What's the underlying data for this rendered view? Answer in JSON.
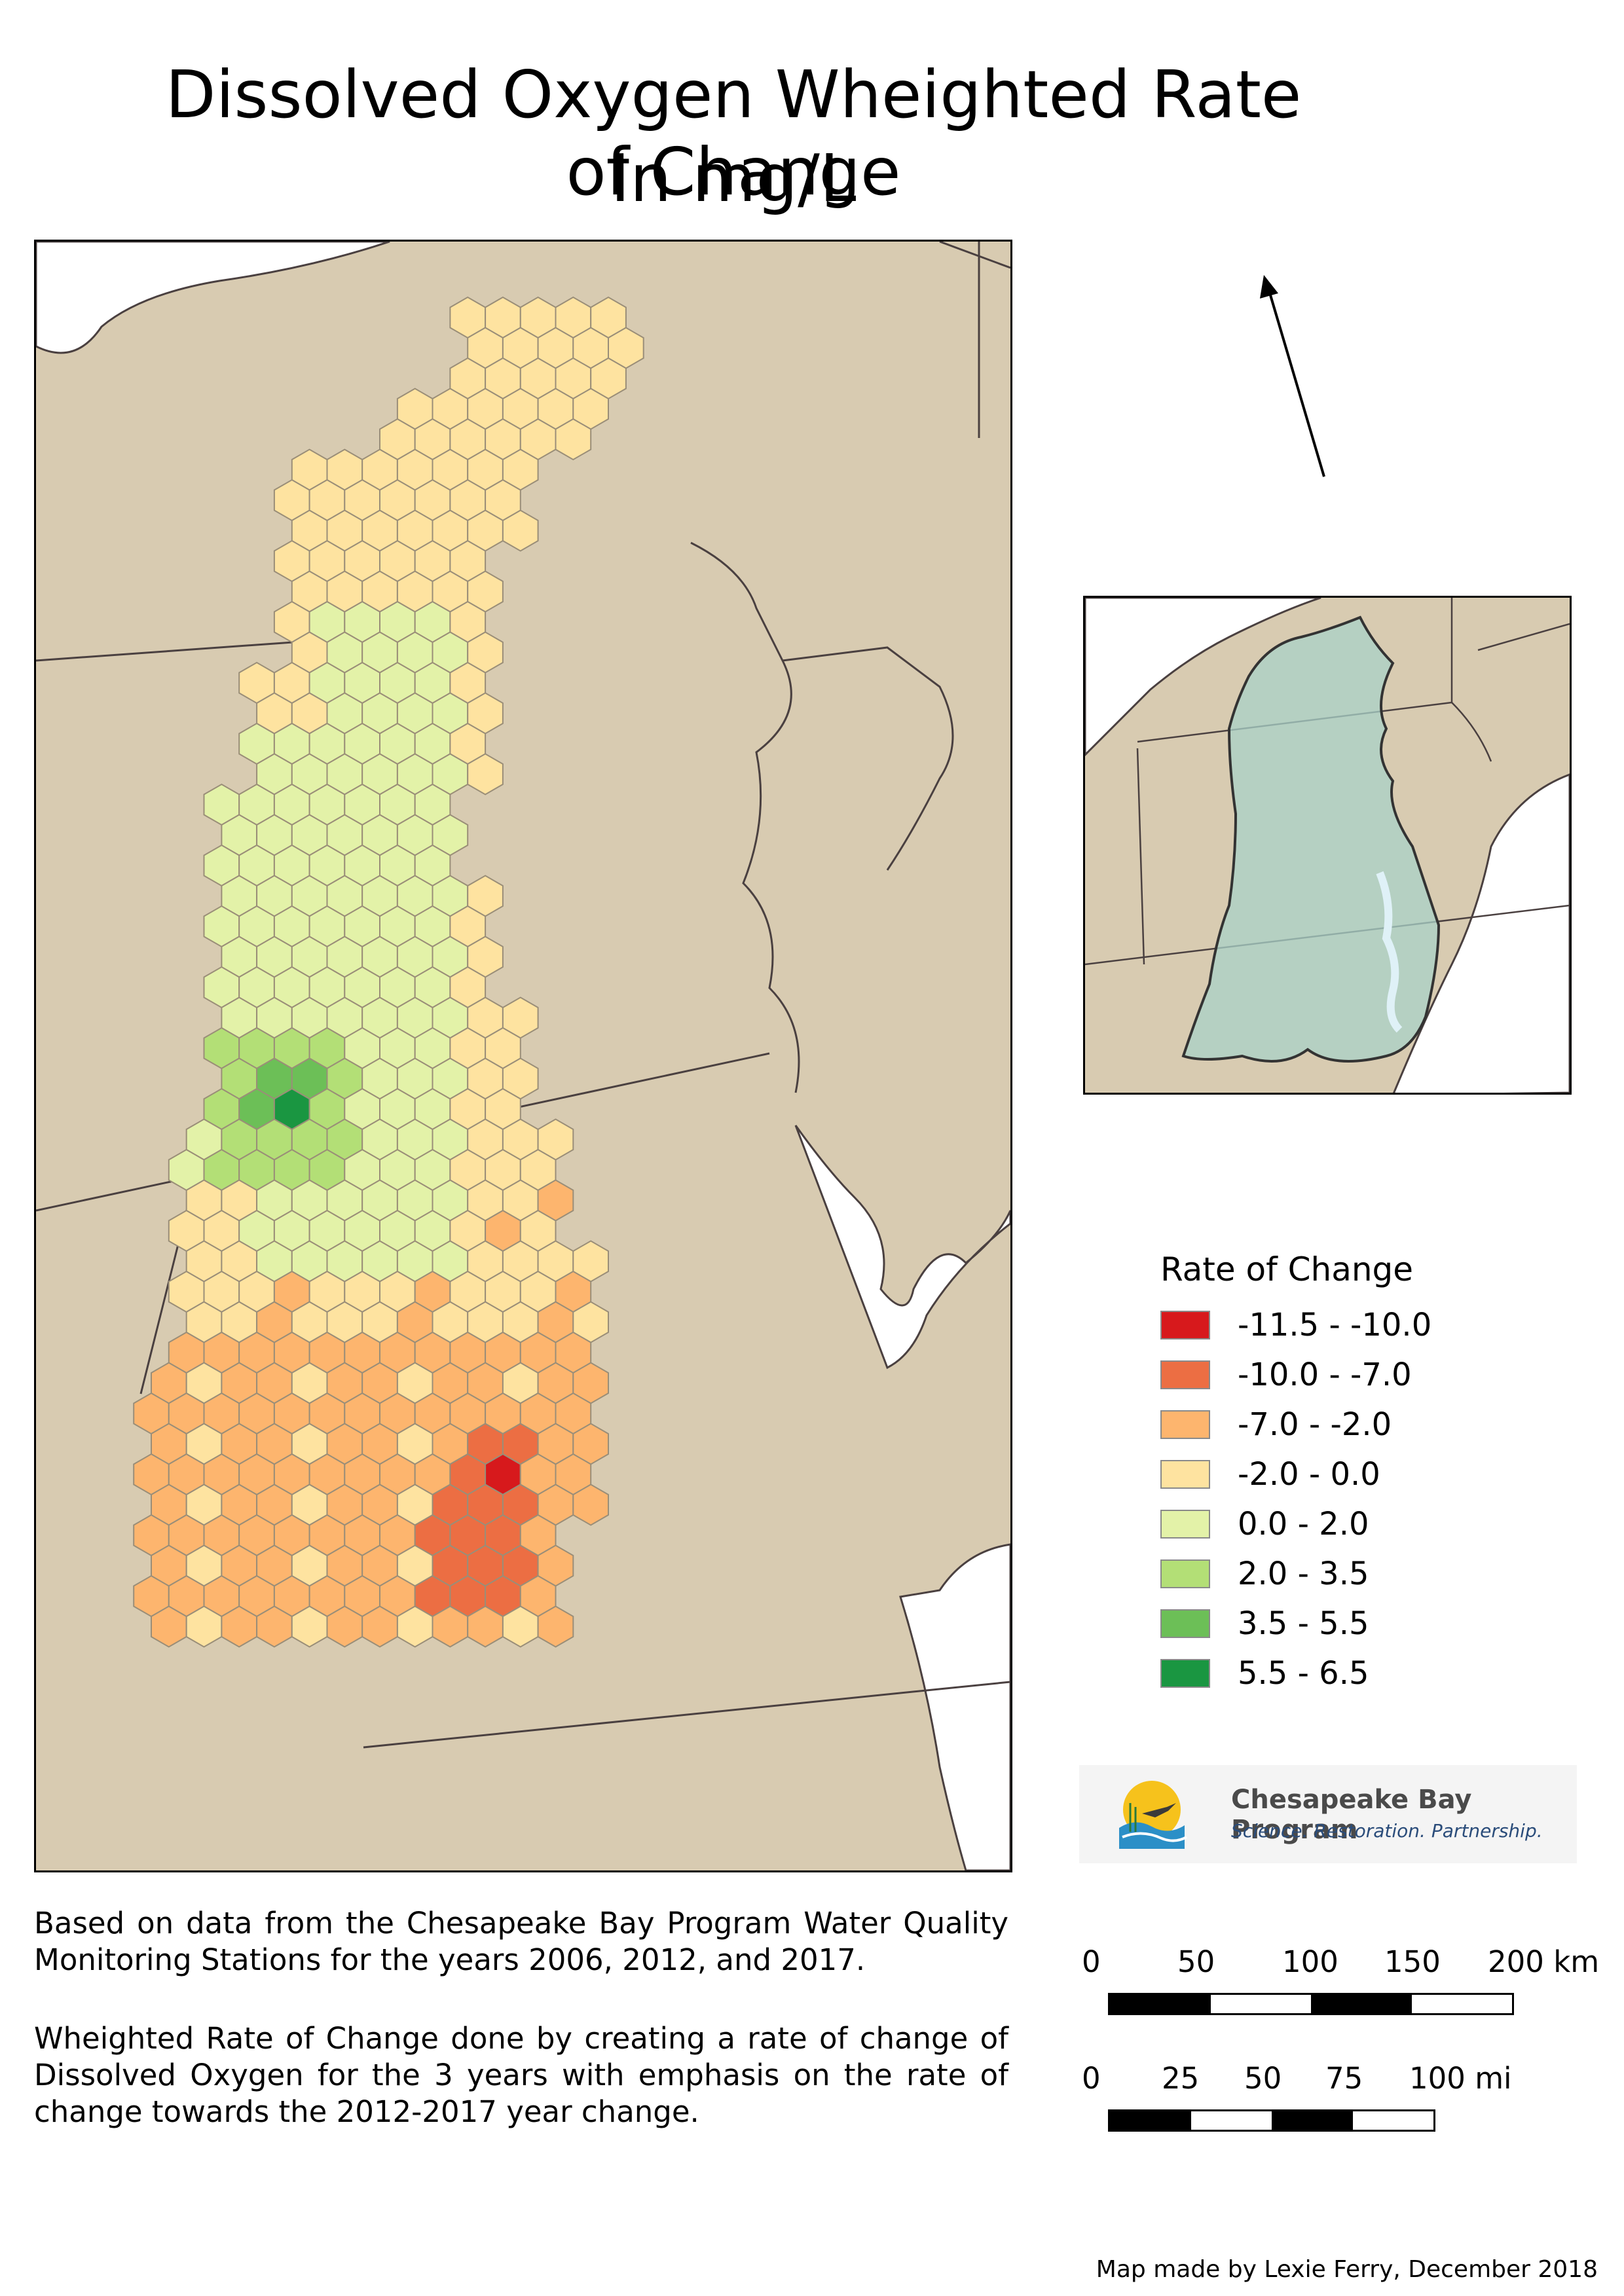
{
  "title": [
    "Dissolved Oxygen Wheighted Rate of Change",
    "In mg/L"
  ],
  "legend": {
    "title": "Rate of Change",
    "items": [
      {
        "label": "-11.5 - -10.0",
        "color": "#d7191c"
      },
      {
        "label": "-10.0 - -7.0",
        "color": "#ec6e43"
      },
      {
        "label": "-7.0 - -2.0",
        "color": "#fdb56e"
      },
      {
        "label": "-2.0 - 0.0",
        "color": "#fee3a0"
      },
      {
        "label": "0.0 - 2.0",
        "color": "#e3f2a8"
      },
      {
        "label": "2.0 - 3.5",
        "color": "#b3df76"
      },
      {
        "label": "3.5 - 5.5",
        "color": "#6cbf57"
      },
      {
        "label": "5.5 - 6.5",
        "color": "#1a9641"
      }
    ]
  },
  "map_colors": {
    "land": "#d8cbb1",
    "water": "#ffffff",
    "watershed": "#a9d2c8",
    "boundary": "#4a4040"
  },
  "logo": {
    "name": "Chesapeake Bay Program",
    "tagline": "Science. Restoration. Partnership."
  },
  "notes": [
    "Based on data from the Chesapeake Bay Program Water Quality Monitoring Stations for the years 2006, 2012, and 2017.",
    "Wheighted Rate of Change done by creating a rate of change of Dissolved Oxygen for the 3 years with emphasis on the rate of change towards the 2012-2017 year change."
  ],
  "scale_km": {
    "labels": [
      "0",
      "50",
      "100",
      "150",
      "200 km"
    ]
  },
  "scale_mi": {
    "labels": [
      "0",
      "25",
      "50",
      "75",
      "100 mi"
    ]
  },
  "credit": "Map made by Lexie Ferry, December 2018"
}
